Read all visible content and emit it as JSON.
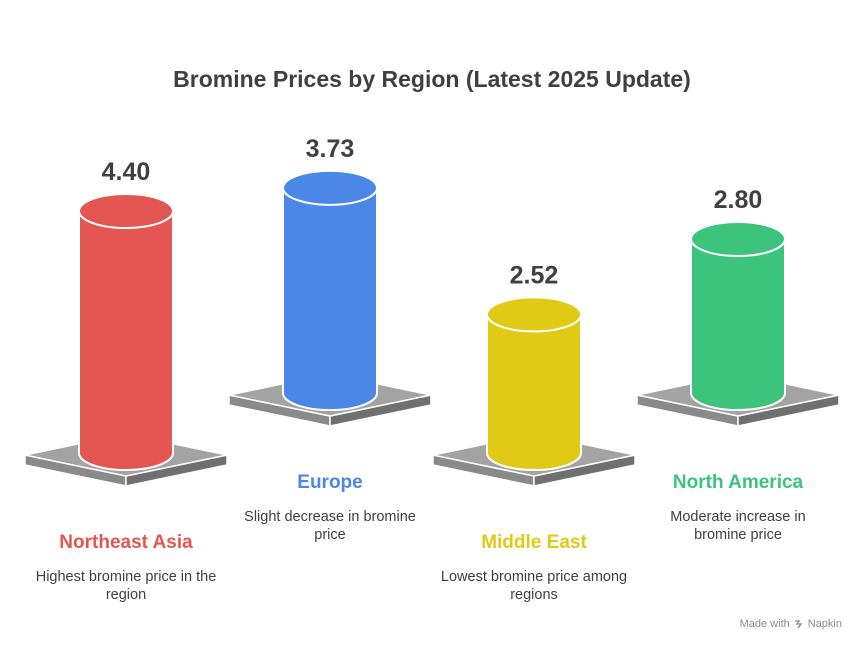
{
  "header": {
    "title": "Bromine Prices by Region (Latest 2025 Update)"
  },
  "chart_data": {
    "type": "bar",
    "title": "Bromine Prices by Region (Latest 2025 Update)",
    "categories": [
      "Northeast Asia",
      "Europe",
      "Middle East",
      "North America"
    ],
    "values": [
      4.4,
      3.73,
      2.52,
      2.8
    ],
    "value_labels": [
      "4.40",
      "3.73",
      "2.52",
      "2.80"
    ],
    "descriptions": [
      "Highest bromine price in the region",
      "Slight decrease in bromine price",
      "Lowest bromine price among regions",
      "Moderate increase in bromine price"
    ],
    "colors": [
      "#e35652",
      "#4a87e6",
      "#e0ca16",
      "#3cc47c"
    ],
    "legend": "none",
    "grid": false
  },
  "footer": {
    "credit": "Made with",
    "brand": "Napkin"
  }
}
